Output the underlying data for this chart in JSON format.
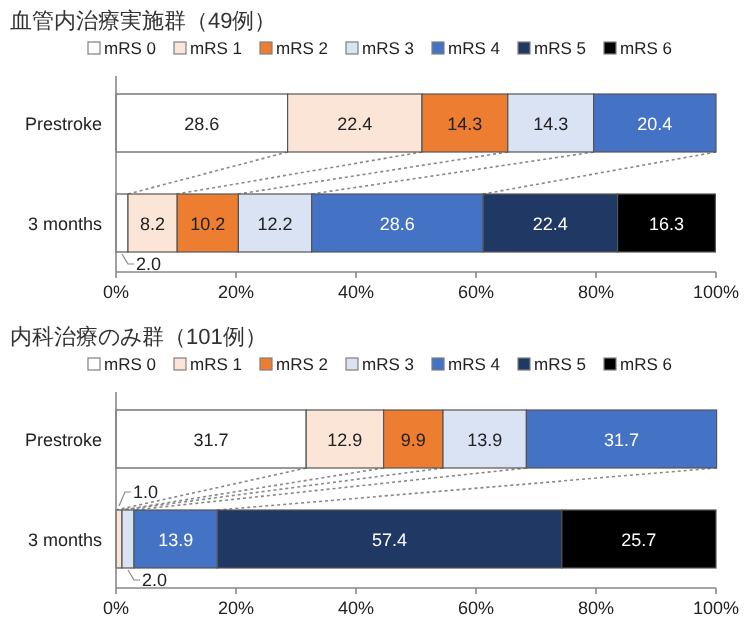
{
  "chart_data": [
    {
      "type": "bar",
      "orientation": "horizontal",
      "stacked": true,
      "title": "血管内治療実施群（49例）",
      "legend": "top",
      "categories": [
        "Prestroke",
        "3 months"
      ],
      "xlim": [
        0,
        100
      ],
      "xticks": [
        {
          "value": 0,
          "label": "0%"
        },
        {
          "value": 20,
          "label": "20%"
        },
        {
          "value": 40,
          "label": "40%"
        },
        {
          "value": 60,
          "label": "60%"
        },
        {
          "value": 80,
          "label": "80%"
        },
        {
          "value": 100,
          "label": "100%"
        }
      ],
      "series": [
        {
          "name": "mRS 0",
          "color": "#ffffff",
          "values": [
            28.6,
            2.0
          ],
          "value_labels": [
            "28.6",
            "2.0"
          ]
        },
        {
          "name": "mRS 1",
          "color": "#fbe5d6",
          "values": [
            22.4,
            8.2
          ],
          "value_labels": [
            "22.4",
            "8.2"
          ]
        },
        {
          "name": "mRS 2",
          "color": "#ed7d31",
          "values": [
            14.3,
            10.2
          ],
          "value_labels": [
            "14.3",
            "10.2"
          ]
        },
        {
          "name": "mRS 3",
          "color": "#dae3f3",
          "values": [
            14.3,
            12.2
          ],
          "value_labels": [
            "14.3",
            "12.2"
          ]
        },
        {
          "name": "mRS 4",
          "color": "#4472c4",
          "values": [
            20.4,
            28.6
          ],
          "value_labels": [
            "20.4",
            "28.6"
          ]
        },
        {
          "name": "mRS 5",
          "color": "#203864",
          "values": [
            0,
            22.4
          ],
          "value_labels": [
            null,
            "22.4"
          ]
        },
        {
          "name": "mRS 6",
          "color": "#000000",
          "values": [
            0,
            16.3
          ],
          "value_labels": [
            null,
            "16.3"
          ]
        }
      ]
    },
    {
      "type": "bar",
      "orientation": "horizontal",
      "stacked": true,
      "title": "内科治療のみ群（101例）",
      "legend": "top",
      "categories": [
        "Prestroke",
        "3 months"
      ],
      "xlim": [
        0,
        100
      ],
      "xticks": [
        {
          "value": 0,
          "label": "0%"
        },
        {
          "value": 20,
          "label": "20%"
        },
        {
          "value": 40,
          "label": "40%"
        },
        {
          "value": 60,
          "label": "60%"
        },
        {
          "value": 80,
          "label": "80%"
        },
        {
          "value": 100,
          "label": "100%"
        }
      ],
      "series": [
        {
          "name": "mRS 0",
          "color": "#ffffff",
          "values": [
            31.7,
            0
          ],
          "value_labels": [
            "31.7",
            null
          ]
        },
        {
          "name": "mRS 1",
          "color": "#fbe5d6",
          "values": [
            12.9,
            1.0
          ],
          "value_labels": [
            "12.9",
            "1.0"
          ]
        },
        {
          "name": "mRS 2",
          "color": "#ed7d31",
          "values": [
            9.9,
            0
          ],
          "value_labels": [
            "9.9",
            null
          ]
        },
        {
          "name": "mRS 3",
          "color": "#dae3f3",
          "values": [
            13.9,
            2.0
          ],
          "value_labels": [
            "13.9",
            "2.0"
          ]
        },
        {
          "name": "mRS 4",
          "color": "#4472c4",
          "values": [
            31.7,
            13.9
          ],
          "value_labels": [
            "31.7",
            "13.9"
          ]
        },
        {
          "name": "mRS 5",
          "color": "#203864",
          "values": [
            0,
            57.4
          ],
          "value_labels": [
            null,
            "57.4"
          ]
        },
        {
          "name": "mRS 6",
          "color": "#000000",
          "values": [
            0,
            25.7
          ],
          "value_labels": [
            null,
            "25.7"
          ]
        }
      ]
    }
  ]
}
